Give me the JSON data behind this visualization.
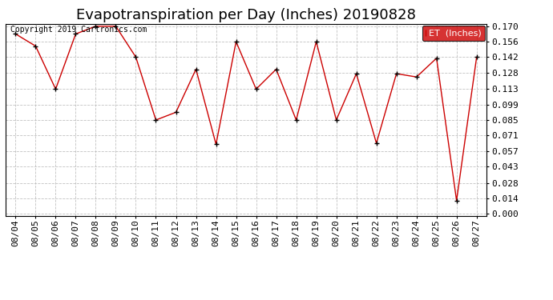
{
  "title": "Evapotranspiration per Day (Inches) 20190828",
  "copyright": "Copyright 2019 Cartronics.com",
  "legend_label": "ET  (Inches)",
  "dates": [
    "08/04",
    "08/05",
    "08/06",
    "08/07",
    "08/08",
    "08/09",
    "08/10",
    "08/11",
    "08/12",
    "08/13",
    "08/14",
    "08/15",
    "08/16",
    "08/17",
    "08/18",
    "08/19",
    "08/20",
    "08/21",
    "08/22",
    "08/23",
    "08/24",
    "08/25",
    "08/26",
    "08/27"
  ],
  "values": [
    0.163,
    0.152,
    0.113,
    0.163,
    0.17,
    0.17,
    0.142,
    0.085,
    0.092,
    0.131,
    0.063,
    0.156,
    0.113,
    0.131,
    0.085,
    0.156,
    0.085,
    0.127,
    0.064,
    0.127,
    0.124,
    0.141,
    0.012,
    0.142
  ],
  "yticks": [
    0.0,
    0.014,
    0.028,
    0.043,
    0.057,
    0.071,
    0.085,
    0.099,
    0.113,
    0.128,
    0.142,
    0.156,
    0.17
  ],
  "line_color": "#cc0000",
  "marker_color": "#000000",
  "bg_color": "#ffffff",
  "grid_color": "#bbbbbb",
  "legend_bg": "#cc0000",
  "legend_text_color": "#ffffff",
  "title_fontsize": 13,
  "tick_fontsize": 8,
  "copyright_fontsize": 7,
  "ylim_min": -0.002,
  "ylim_max": 0.172
}
